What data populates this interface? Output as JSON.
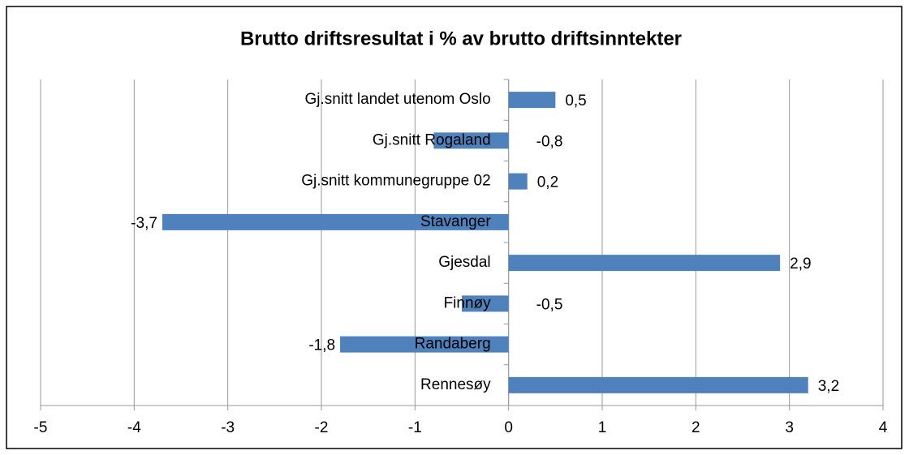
{
  "chart_data": {
    "type": "barh",
    "title": "Brutto driftsresultat i % av brutto driftsinntekter",
    "categories": [
      "Gj.snitt landet utenom Oslo",
      "Gj.snitt Rogaland",
      "Gj.snitt kommunegruppe 02",
      "Stavanger",
      "Gjesdal",
      "Finnøy",
      "Randaberg",
      "Rennesøy"
    ],
    "values": [
      0.5,
      -0.8,
      0.2,
      -3.7,
      2.9,
      -0.5,
      -1.8,
      3.2
    ],
    "value_labels": [
      "0,5",
      "-0,8",
      "0,2",
      "-3,7",
      "2,9",
      "-0,5",
      "-1,8",
      "3,2"
    ],
    "color": "#4f81bd",
    "xlim": [
      -5,
      4
    ],
    "xticks": [
      -5,
      -4,
      -3,
      -2,
      -1,
      0,
      1,
      2,
      3,
      4
    ],
    "grid": true
  }
}
